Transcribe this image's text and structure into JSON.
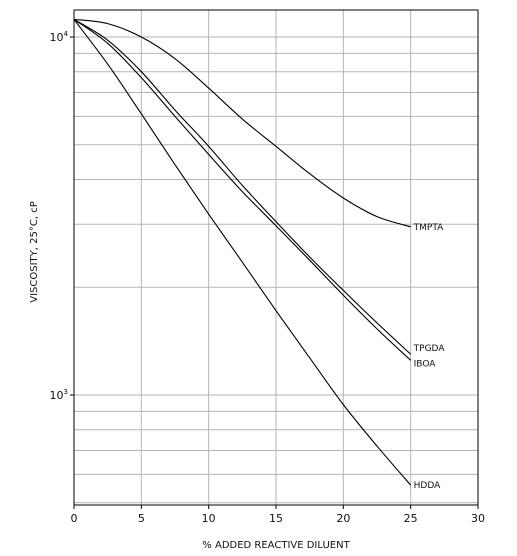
{
  "chart_data": {
    "type": "line",
    "xlabel": "% ADDED REACTIVE DILUENT",
    "ylabel": "VISCOSITY, 25°C, cP",
    "xlim": [
      0,
      30
    ],
    "ylim": [
      500,
      12000
    ],
    "yscale": "log",
    "grid": true,
    "x_ticks": [
      "0",
      "5",
      "10",
      "15",
      "20",
      "25",
      "30"
    ],
    "y_tick_labels": [
      {
        "value": 10000,
        "base": "10",
        "exp": "4"
      },
      {
        "value": 1000,
        "base": "10",
        "exp": "3"
      }
    ],
    "series": [
      {
        "name": "TMPTA",
        "x": [
          0,
          2.5,
          5,
          7.5,
          10,
          12.5,
          15,
          17.5,
          20,
          22.5,
          25
        ],
        "y": [
          11200,
          10900,
          10000,
          8700,
          7200,
          5900,
          4950,
          4150,
          3550,
          3150,
          2950
        ]
      },
      {
        "name": "TPGDA",
        "x": [
          0,
          2.5,
          5,
          7.5,
          10,
          12.5,
          15,
          17.5,
          20,
          22.5,
          25
        ],
        "y": [
          11200,
          9800,
          8000,
          6250,
          4950,
          3850,
          3050,
          2430,
          1960,
          1590,
          1300
        ]
      },
      {
        "name": "IBOA",
        "x": [
          0,
          2.5,
          5,
          7.5,
          10,
          12.5,
          15,
          17.5,
          20,
          22.5,
          25
        ],
        "y": [
          11200,
          9600,
          7700,
          6000,
          4700,
          3700,
          2970,
          2380,
          1900,
          1530,
          1250
        ]
      },
      {
        "name": "HDDA",
        "x": [
          0,
          2.5,
          5,
          7.5,
          10,
          12.5,
          15,
          17.5,
          20,
          22.5,
          25
        ],
        "y": [
          11200,
          8400,
          6100,
          4400,
          3200,
          2350,
          1720,
          1270,
          940,
          720,
          560
        ]
      }
    ]
  }
}
